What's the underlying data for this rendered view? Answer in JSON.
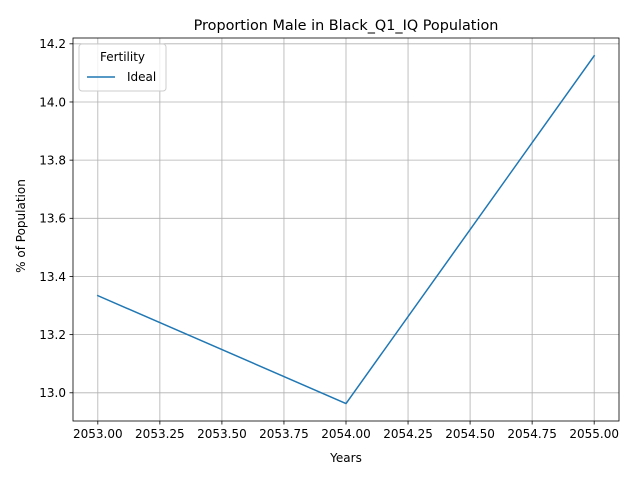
{
  "chart_data": {
    "type": "line",
    "title": "Proportion Male in Black_Q1_IQ Population",
    "xlabel": "Years",
    "ylabel": "% of Population",
    "xlim": [
      2052.9,
      2055.1
    ],
    "ylim": [
      12.903,
      14.22
    ],
    "x_ticks": [
      2053.0,
      2053.25,
      2053.5,
      2053.75,
      2054.0,
      2054.25,
      2054.5,
      2054.75,
      2055.0
    ],
    "x_tick_labels": [
      "2053.00",
      "2053.25",
      "2053.50",
      "2053.75",
      "2054.00",
      "2054.25",
      "2054.50",
      "2054.75",
      "2055.00"
    ],
    "y_ticks": [
      13.0,
      13.2,
      13.4,
      13.6,
      13.8,
      14.0,
      14.2
    ],
    "y_tick_labels": [
      "13.0",
      "13.2",
      "13.4",
      "13.6",
      "13.8",
      "14.0",
      "14.2"
    ],
    "grid": true,
    "legend": {
      "title": "Fertility",
      "placement": "upper-left"
    },
    "series": [
      {
        "name": "Ideal",
        "color": "#1f77b4",
        "x": [
          2053,
          2054,
          2055
        ],
        "y": [
          13.334,
          12.963,
          14.159
        ]
      }
    ]
  }
}
